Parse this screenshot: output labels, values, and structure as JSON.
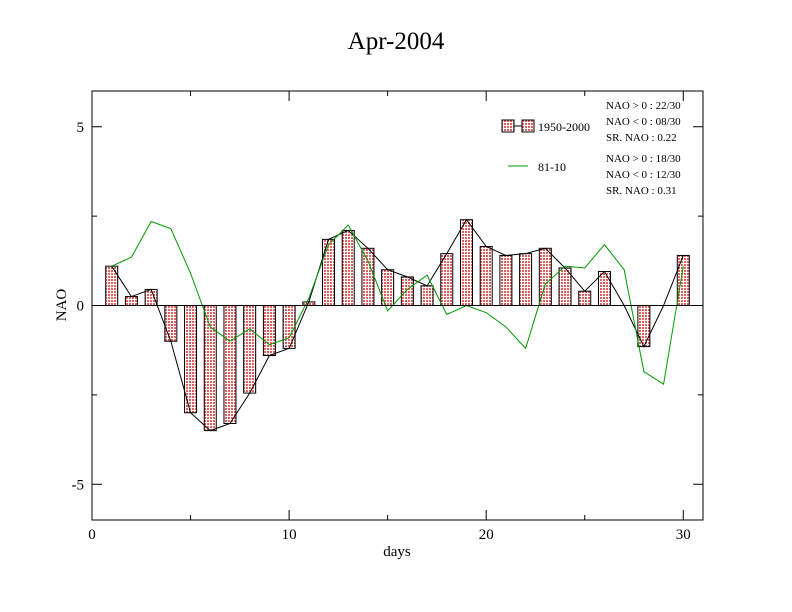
{
  "chart_data": {
    "type": "bar",
    "title": "Apr-2004",
    "xlabel": "days",
    "ylabel": "NAO",
    "xlim": [
      0,
      31
    ],
    "ylim": [
      -6,
      6
    ],
    "x_ticks": [
      0,
      10,
      20,
      30
    ],
    "x_tick_labels": [
      "0",
      "10",
      "20",
      "30"
    ],
    "y_ticks": [
      -5,
      0,
      5
    ],
    "y_tick_labels": [
      "-5",
      "0",
      "5"
    ],
    "grid": false,
    "legend_position": "top-right",
    "x": [
      1,
      2,
      3,
      4,
      5,
      6,
      7,
      8,
      9,
      10,
      11,
      12,
      13,
      14,
      15,
      16,
      17,
      18,
      19,
      20,
      21,
      22,
      23,
      24,
      25,
      26,
      27,
      28,
      29,
      30
    ],
    "series": [
      {
        "name": "1950-2000",
        "kind": "bar",
        "color": "#e06060",
        "values": [
          1.1,
          0.25,
          0.45,
          -1.0,
          -3.0,
          -3.5,
          -3.3,
          -2.45,
          -1.4,
          -1.2,
          0.1,
          1.85,
          2.1,
          1.6,
          1.0,
          0.8,
          0.55,
          1.45,
          2.4,
          1.65,
          1.4,
          1.45,
          1.6,
          1.05,
          0.4,
          0.95,
          0.0,
          -1.15,
          0.0,
          1.4
        ]
      },
      {
        "name": "81-10",
        "kind": "line",
        "color": "#009900",
        "values": [
          1.1,
          1.35,
          2.35,
          2.15,
          0.9,
          -0.6,
          -1.0,
          -0.65,
          -1.1,
          -0.9,
          0.2,
          1.7,
          2.25,
          1.25,
          -0.15,
          0.45,
          0.85,
          -0.25,
          0.0,
          -0.2,
          -0.6,
          -1.2,
          0.6,
          1.1,
          1.05,
          1.7,
          1.0,
          -1.85,
          -2.2,
          1.1
        ]
      }
    ],
    "annotations": [
      {
        "text": "NAO > 0 :  22/30"
      },
      {
        "text": "NAO < 0 :  08/30"
      },
      {
        "text": "SR. NAO :   0.22"
      },
      {
        "text": "NAO > 0 :  18/30"
      },
      {
        "text": "NAO < 0 :  12/30"
      },
      {
        "text": "SR. NAO :   0.31"
      }
    ]
  }
}
